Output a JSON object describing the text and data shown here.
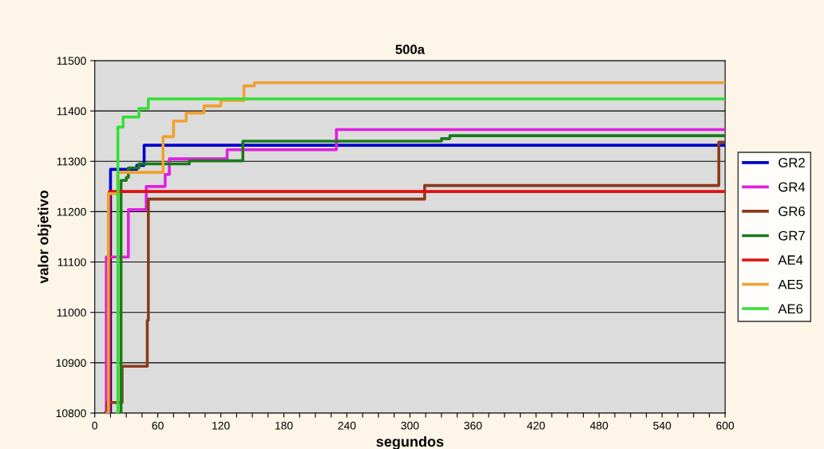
{
  "chart_data": {
    "type": "step",
    "title": "500a",
    "xlabel": "segundos",
    "ylabel": "valor objetivo",
    "xlim": [
      0,
      600
    ],
    "ylim": [
      10800,
      11500
    ],
    "xticks": [
      0,
      {
        "value": 15,
        "label": null
      },
      {
        "value": 30,
        "label": null
      },
      {
        "value": 45,
        "label": null
      },
      60,
      {
        "value": 75,
        "label": null
      },
      {
        "value": 90,
        "label": null
      },
      {
        "value": 105,
        "label": null
      },
      120,
      {
        "value": 135,
        "label": null
      },
      {
        "value": 150,
        "label": null
      },
      {
        "value": 165,
        "label": null
      },
      180,
      {
        "value": 195,
        "label": null
      },
      {
        "value": 210,
        "label": null
      },
      {
        "value": 225,
        "label": null
      },
      240,
      {
        "value": 255,
        "label": null
      },
      {
        "value": 270,
        "label": null
      },
      {
        "value": 285,
        "label": null
      },
      300,
      {
        "value": 315,
        "label": null
      },
      {
        "value": 330,
        "label": null
      },
      {
        "value": 345,
        "label": null
      },
      360,
      {
        "value": 375,
        "label": null
      },
      {
        "value": 390,
        "label": null
      },
      {
        "value": 405,
        "label": null
      },
      420,
      {
        "value": 435,
        "label": null
      },
      {
        "value": 450,
        "label": null
      },
      {
        "value": 465,
        "label": null
      },
      480,
      {
        "value": 495,
        "label": null
      },
      {
        "value": 510,
        "label": null
      },
      {
        "value": 525,
        "label": null
      },
      540,
      {
        "value": 555,
        "label": null
      },
      {
        "value": 570,
        "label": null
      },
      {
        "value": 585,
        "label": null
      },
      600
    ],
    "yticks": [
      10800,
      10900,
      11000,
      11100,
      11200,
      11300,
      11400,
      11500
    ],
    "grid": "y",
    "legend": "right",
    "marker": "none",
    "line_style": "solid",
    "series": [
      {
        "name": "GR2",
        "color": "#0000cc",
        "x": [
          14,
          15,
          40,
          47,
          600
        ],
        "values": [
          10800,
          11284,
          11292,
          11332,
          11332
        ]
      },
      {
        "name": "GR4",
        "color": "#e020e0",
        "x": [
          10,
          11,
          32,
          49,
          67,
          71,
          126,
          230,
          600
        ],
        "values": [
          10800,
          11110,
          11204,
          11250,
          11274,
          11305,
          11323,
          11363,
          11363
        ]
      },
      {
        "name": "GR6",
        "color": "#8b3a1a",
        "x": [
          10,
          12,
          26,
          50,
          51,
          314,
          594,
          600
        ],
        "values": [
          10800,
          10821,
          10893,
          10984,
          11225,
          11252,
          11338,
          11338
        ]
      },
      {
        "name": "GR7",
        "color": "#1a7a1a",
        "x": [
          24,
          25,
          30,
          32,
          42,
          90,
          141,
          330,
          338,
          600
        ],
        "values": [
          10800,
          11262,
          11268,
          11287,
          11295,
          11301,
          11340,
          11345,
          11351,
          11351
        ]
      },
      {
        "name": "AE4",
        "color": "#e01010",
        "x": [
          13,
          14,
          600
        ],
        "values": [
          10800,
          11240,
          11240
        ]
      },
      {
        "name": "AE5",
        "color": "#f0a030",
        "x": [
          12,
          13,
          22,
          65,
          75,
          87,
          104,
          120,
          142,
          152,
          600
        ],
        "values": [
          10800,
          11236,
          11278,
          11349,
          11380,
          11396,
          11410,
          11421,
          11450,
          11456,
          11456
        ]
      },
      {
        "name": "AE6",
        "color": "#33e033",
        "x": [
          21,
          22,
          27,
          42,
          51,
          600
        ],
        "values": [
          10800,
          11368,
          11388,
          11405,
          11424,
          11424
        ]
      }
    ]
  }
}
